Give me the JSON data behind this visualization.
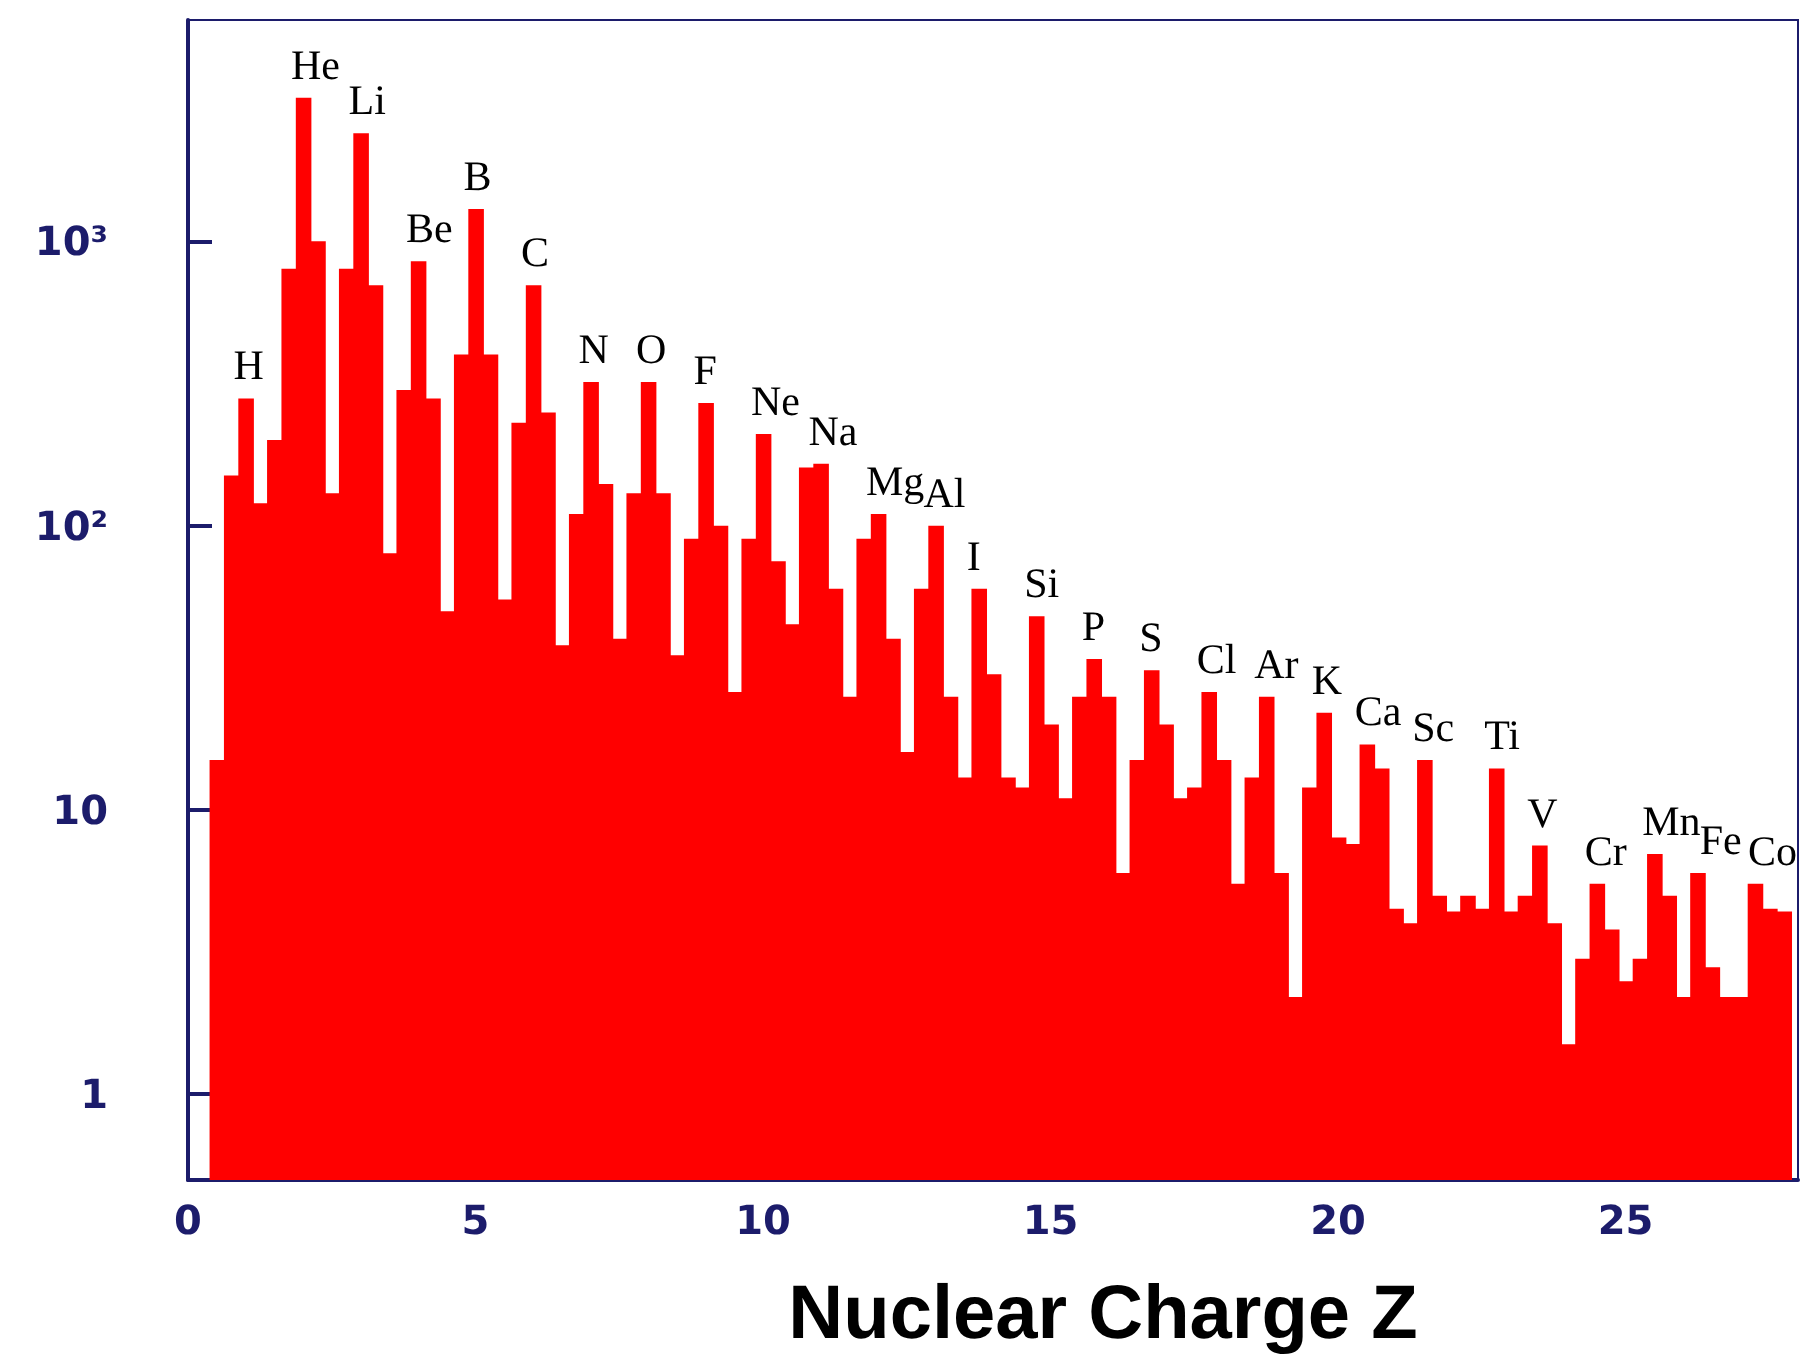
{
  "chart_data": {
    "type": "histogram",
    "xlabel": "Nuclear Charge Z",
    "color": "#ff0000",
    "log": "y",
    "bins": [
      0.375,
      0.625,
      0.875,
      1.125,
      1.375,
      1.625,
      1.875,
      2.125,
      2.375,
      2.625,
      2.875,
      3.125,
      3.375,
      3.625,
      3.875,
      4.125,
      4.375,
      4.625,
      4.875,
      5.125,
      5.375,
      5.625,
      5.875,
      6.125,
      6.375,
      6.625,
      6.875,
      7.125,
      7.375,
      7.625,
      7.875,
      8.125,
      8.375,
      8.625,
      8.875,
      9.125,
      9.375,
      9.625,
      9.875,
      10.125,
      10.375,
      10.625,
      10.875,
      11.125,
      11.375,
      11.625,
      11.875,
      12.125,
      12.375,
      12.625,
      12.875,
      13.125,
      13.375,
      13.625,
      13.875,
      14.125,
      14.375,
      14.625,
      14.875,
      15.125,
      15.375,
      15.625,
      15.875,
      16.125,
      16.375,
      16.625,
      16.875,
      17.125,
      17.375,
      17.625,
      17.875,
      18.125,
      18.375,
      18.625,
      18.875,
      19.125,
      19.375,
      19.625,
      19.875,
      20.125,
      20.375,
      20.625,
      20.875,
      21.125,
      21.375,
      21.625,
      21.875,
      22.125,
      22.375,
      22.625,
      22.875,
      23.125,
      23.375,
      23.625,
      23.875,
      24.125,
      24.375,
      24.625,
      24.875,
      25.125,
      25.375,
      25.625,
      25.875,
      26.125,
      26.375,
      26.625,
      26.875,
      27.125,
      27.375,
      27.625,
      27.875
    ],
    "values": [
      15,
      150,
      280,
      120,
      200,
      800,
      3200,
      1000,
      130,
      800,
      2400,
      700,
      80,
      300,
      850,
      280,
      50,
      400,
      1300,
      400,
      55,
      230,
      700,
      250,
      38,
      110,
      320,
      140,
      40,
      130,
      320,
      130,
      35,
      90,
      270,
      100,
      26,
      90,
      210,
      75,
      45,
      160,
      165,
      60,
      25,
      90,
      110,
      40,
      16,
      60,
      100,
      25,
      13,
      60,
      30,
      13,
      12,
      48,
      20,
      11,
      25,
      34,
      25,
      6,
      15,
      31,
      20,
      11,
      12,
      26,
      15,
      5.5,
      13,
      25,
      6,
      2.2,
      12,
      22,
      8,
      7.6,
      17,
      14,
      4.5,
      4,
      15,
      5,
      4.4,
      5,
      4.5,
      14,
      4.4,
      5,
      7.5,
      4,
      1.5,
      3,
      5.5,
      3.8,
      2.5,
      3,
      7,
      5,
      2.2,
      6,
      2.8,
      2.2,
      2.2,
      5.5,
      4.5,
      4.4
    ],
    "xlim": [
      0,
      28
    ],
    "xticks": [
      0,
      5,
      10,
      15,
      20,
      25
    ],
    "ylim": [
      0.5,
      6000
    ],
    "yticks": [
      1,
      10,
      {
        "value": 100,
        "label": "10²"
      },
      {
        "value": 1000,
        "label": "10³"
      }
    ],
    "annotations": [
      {
        "text": "H",
        "x": 1.0,
        "y": 280
      },
      {
        "text": "He",
        "x": 2.0,
        "y": 3200
      },
      {
        "text": "Li",
        "x": 3.0,
        "y": 2400
      },
      {
        "text": "Be",
        "x": 4.0,
        "y": 850
      },
      {
        "text": "B",
        "x": 5.0,
        "y": 1300
      },
      {
        "text": "C",
        "x": 6.0,
        "y": 700
      },
      {
        "text": "N",
        "x": 7.0,
        "y": 320
      },
      {
        "text": "O",
        "x": 8.0,
        "y": 320
      },
      {
        "text": "F",
        "x": 9.0,
        "y": 270
      },
      {
        "text": "Ne",
        "x": 10.0,
        "y": 210
      },
      {
        "text": "Na",
        "x": 11.0,
        "y": 165
      },
      {
        "text": "Mg",
        "x": 12.0,
        "y": 110
      },
      {
        "text": "Al",
        "x": 13.0,
        "y": 100
      },
      {
        "text": "I",
        "x": 13.75,
        "y": 60
      },
      {
        "text": "Si",
        "x": 14.75,
        "y": 48
      },
      {
        "text": "P",
        "x": 15.75,
        "y": 34
      },
      {
        "text": "S",
        "x": 16.75,
        "y": 31
      },
      {
        "text": "Cl",
        "x": 17.75,
        "y": 26
      },
      {
        "text": "Ar",
        "x": 18.75,
        "y": 25
      },
      {
        "text": "K",
        "x": 19.75,
        "y": 22
      },
      {
        "text": "Ca",
        "x": 20.5,
        "y": 17
      },
      {
        "text": "Sc",
        "x": 21.5,
        "y": 15
      },
      {
        "text": "Ti",
        "x": 22.75,
        "y": 14
      },
      {
        "text": "V",
        "x": 23.5,
        "y": 7.5
      },
      {
        "text": "Cr",
        "x": 24.5,
        "y": 5.5
      },
      {
        "text": "Mn",
        "x": 25.5,
        "y": 7
      },
      {
        "text": "Fe",
        "x": 26.5,
        "y": 6
      },
      {
        "text": "Co",
        "x": 27.5,
        "y": 5.5
      }
    ]
  }
}
